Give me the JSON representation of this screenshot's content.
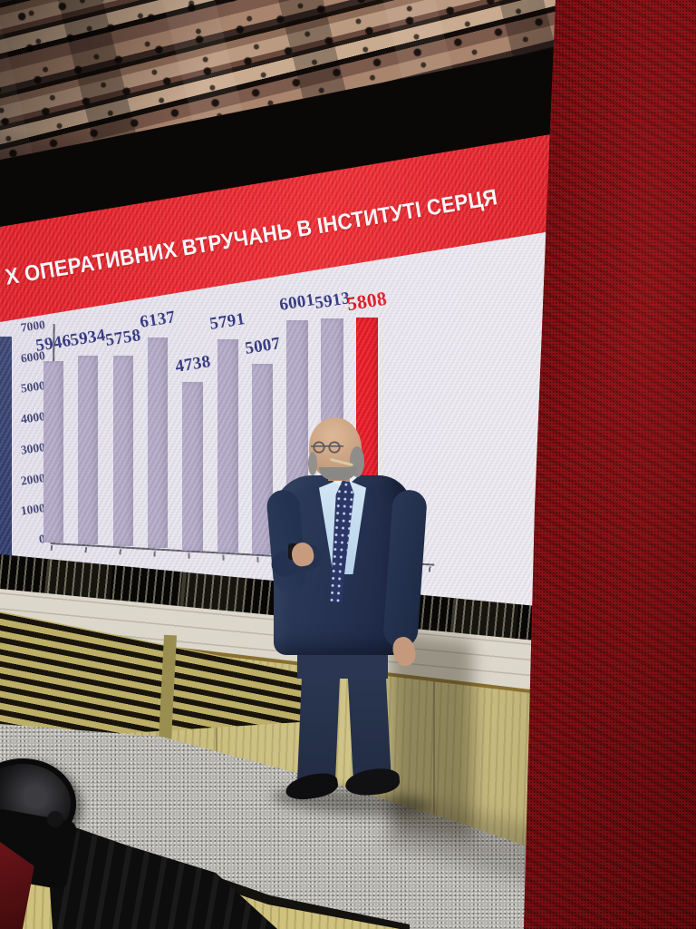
{
  "slide": {
    "title": "Х ОПЕРАТИВНИХ ВТРУЧАНЬ В ІНСТИТУТІ СЕРЦЯ",
    "title_color": "#ffffff",
    "banner_color": "#dd1219"
  },
  "chart_data": {
    "type": "bar",
    "title": "Х ОПЕРАТИВНИХ ВТРУЧАНЬ В ІНСТИТУТІ СЕРЦЯ",
    "categories": [
      "",
      "",
      "",
      "",
      "",
      "",
      "",
      "",
      "",
      ""
    ],
    "values": [
      5946,
      5934,
      5758,
      6137,
      4738,
      5791,
      5007,
      6001,
      5913,
      5808
    ],
    "highlight_index": 9,
    "xlabel": "",
    "ylabel": "",
    "ylim": [
      0,
      7000
    ],
    "yticks": [
      0,
      1000,
      2000,
      3000,
      4000,
      5000,
      6000,
      7000
    ],
    "grid": false,
    "legend": null,
    "colors": {
      "bar": "#b3aac6",
      "highlight_bar": "#e8131c",
      "value_label": "#2b2f7a",
      "highlight_value_label": "#e3121a",
      "axis_label": "#383b6e",
      "axis_line": "#5a5a64"
    }
  }
}
